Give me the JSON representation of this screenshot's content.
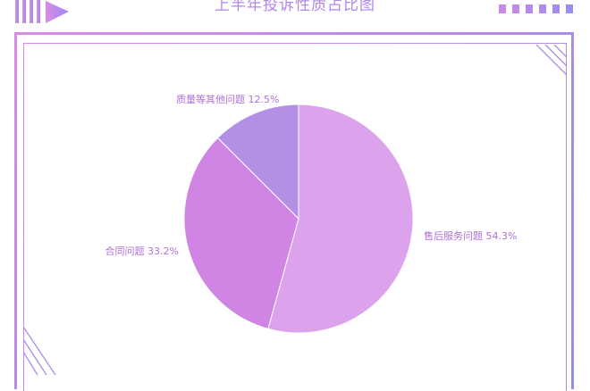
{
  "title": "上半年投诉性质占比图",
  "colors": {
    "accent": "#b486e8",
    "frame_start": "#d98ce6",
    "frame_end": "#8f8ef0"
  },
  "chart_data": {
    "type": "pie",
    "title": "上半年投诉性质占比图",
    "slices": [
      {
        "label": "售后服务问题",
        "value": 54.3,
        "pct_text": "54.3%",
        "color": "#dca3ec"
      },
      {
        "label": "合同问题",
        "value": 33.2,
        "pct_text": "33.2%",
        "color": "#d084e4"
      },
      {
        "label": "质量等其他问题",
        "value": 12.5,
        "pct_text": "12.5%",
        "color": "#b291e4"
      }
    ],
    "start_angle": "12 o'clock",
    "direction": "clockwise",
    "label_color": "#b16fdc"
  }
}
